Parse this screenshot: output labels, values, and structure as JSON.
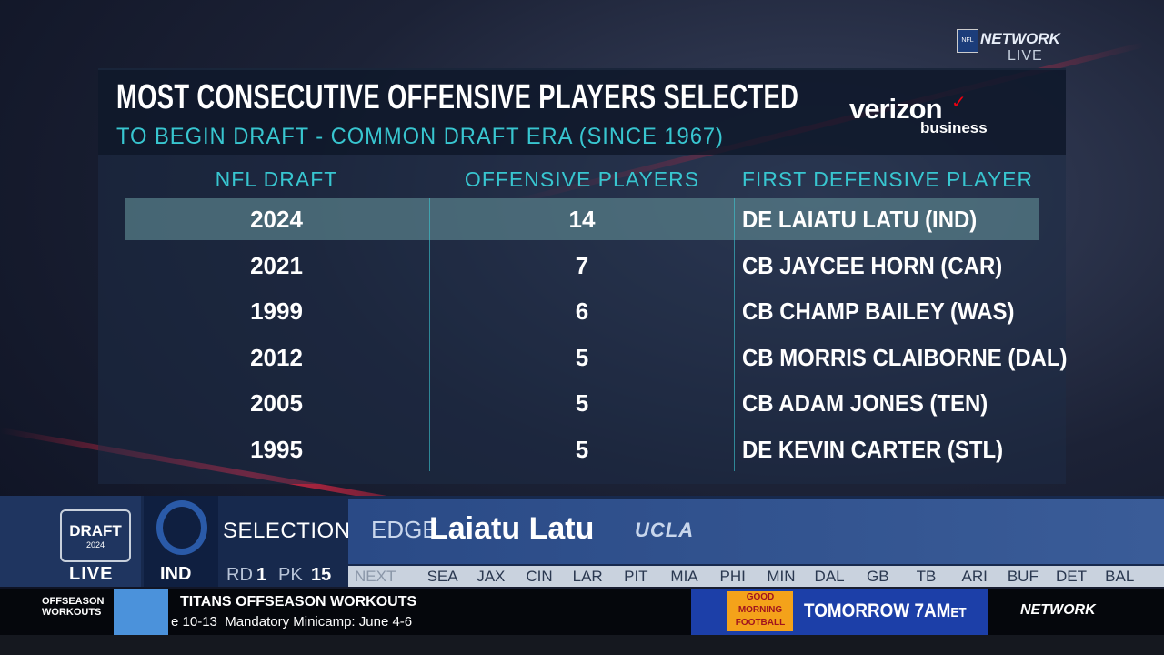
{
  "network_bug": {
    "brand": "NETWORK",
    "status": "LIVE"
  },
  "graphic": {
    "title": "MOST CONSECUTIVE OFFENSIVE PLAYERS SELECTED",
    "subtitle": "TO BEGIN DRAFT - COMMON DRAFT ERA (SINCE 1967)",
    "sponsor": "verizon",
    "sponsor_sub": "business",
    "table": {
      "columns": [
        "NFL DRAFT",
        "OFFENSIVE PLAYERS",
        "FIRST DEFENSIVE PLAYER"
      ],
      "rows": [
        [
          2024,
          14,
          "DE LAIATU LATU (IND)"
        ],
        [
          2021,
          7,
          "CB JAYCEE HORN (CAR)"
        ],
        [
          1999,
          6,
          "CB CHAMP BAILEY (WAS)"
        ],
        [
          2012,
          5,
          "CB MORRIS CLAIBORNE (DAL)"
        ],
        [
          2005,
          5,
          "CB ADAM JONES (TEN)"
        ],
        [
          1995,
          5,
          "DE KEVIN CARTER (STL)"
        ]
      ]
    }
  },
  "ticker": {
    "draft_logo": "DRAFT",
    "draft_year": "2024",
    "live": "LIVE",
    "team": "IND",
    "selection_label": "SELECTION",
    "round_label": "RD",
    "round": 1,
    "pick_label": "PK",
    "pick": 15,
    "position": "EDGE",
    "player": "Laiatu Latu",
    "school": "UCLA",
    "next_label": "NEXT",
    "next_teams": [
      "SEA",
      "JAX",
      "CIN",
      "LAR",
      "PIT",
      "MIA",
      "PHI",
      "MIN",
      "DAL",
      "GB",
      "TB",
      "ARI",
      "BUF",
      "DET",
      "BAL"
    ]
  },
  "bottom_bar": {
    "section_line1": "OFFSEASON",
    "section_line2": "WORKOUTS",
    "headline": "TITANS OFFSEASON WORKOUTS",
    "detail": "e 10-13  Mandatory Minicamp: June 4-6",
    "promo_show": [
      "GOOD",
      "MORNING",
      "FOOTBALL"
    ],
    "promo_time": "TOMORROW 7AM",
    "promo_tz": "ET",
    "network": "NETWORK"
  }
}
